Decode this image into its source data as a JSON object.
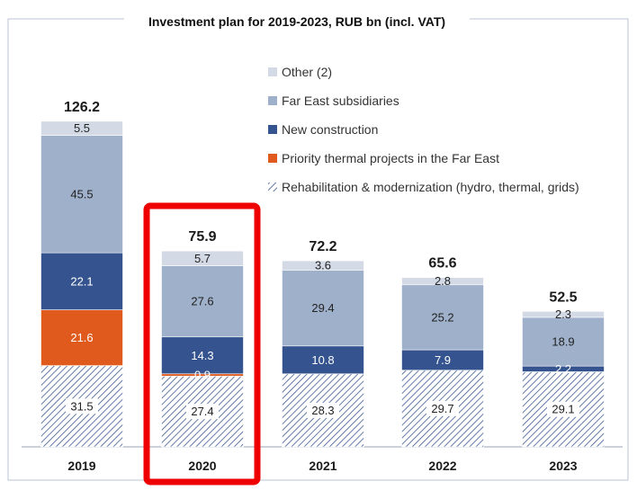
{
  "chart_data": {
    "type": "bar",
    "stacked": true,
    "title": "Investment plan for 2019-2023, RUB bn (incl. VAT)",
    "categories": [
      "2019",
      "2020",
      "2021",
      "2022",
      "2023"
    ],
    "totals": [
      "126.2",
      "75.9",
      "72.2",
      "65.6",
      "52.5"
    ],
    "series": [
      {
        "name": "Rehabilitation & modernization (hydro, thermal, grids)",
        "color": "#9aa6bf",
        "pattern": "hatched",
        "values": [
          31.5,
          27.4,
          28.3,
          29.7,
          29.1
        ],
        "labels": [
          "31.5",
          "27.4",
          "28.3",
          "29.7",
          "29.1"
        ]
      },
      {
        "name": "Priority thermal projects in the Far East",
        "color": "#e05a1e",
        "values": [
          21.6,
          0.9,
          0,
          0,
          0
        ],
        "labels": [
          "21.6",
          "0.9",
          "",
          "",
          ""
        ]
      },
      {
        "name": "New construction",
        "color": "#35548f",
        "values": [
          22.1,
          14.3,
          10.8,
          7.9,
          2.2
        ],
        "labels": [
          "22.1",
          "14.3",
          "10.8",
          "7.9",
          "2.2"
        ]
      },
      {
        "name": "Far East subsidiaries",
        "color": "#9fb0cb",
        "values": [
          45.5,
          27.6,
          29.4,
          25.2,
          18.9
        ],
        "labels": [
          "45.5",
          "27.6",
          "29.4",
          "25.2",
          "18.9"
        ]
      },
      {
        "name": "Other (2)",
        "color": "#d3dae6",
        "values": [
          5.5,
          5.7,
          3.6,
          2.8,
          2.3
        ],
        "labels": [
          "5.5",
          "5.7",
          "3.6",
          "2.8",
          "2.3"
        ]
      }
    ],
    "legend": [
      "Other (2)",
      "Far East subsidiaries",
      "New construction",
      "Priority thermal projects in the Far East",
      "Rehabilitation & modernization (hydro, thermal, grids)"
    ],
    "legend_position": "top-right",
    "highlighted_category": "2020",
    "highlight_color": "#ee0000",
    "grid": false
  }
}
